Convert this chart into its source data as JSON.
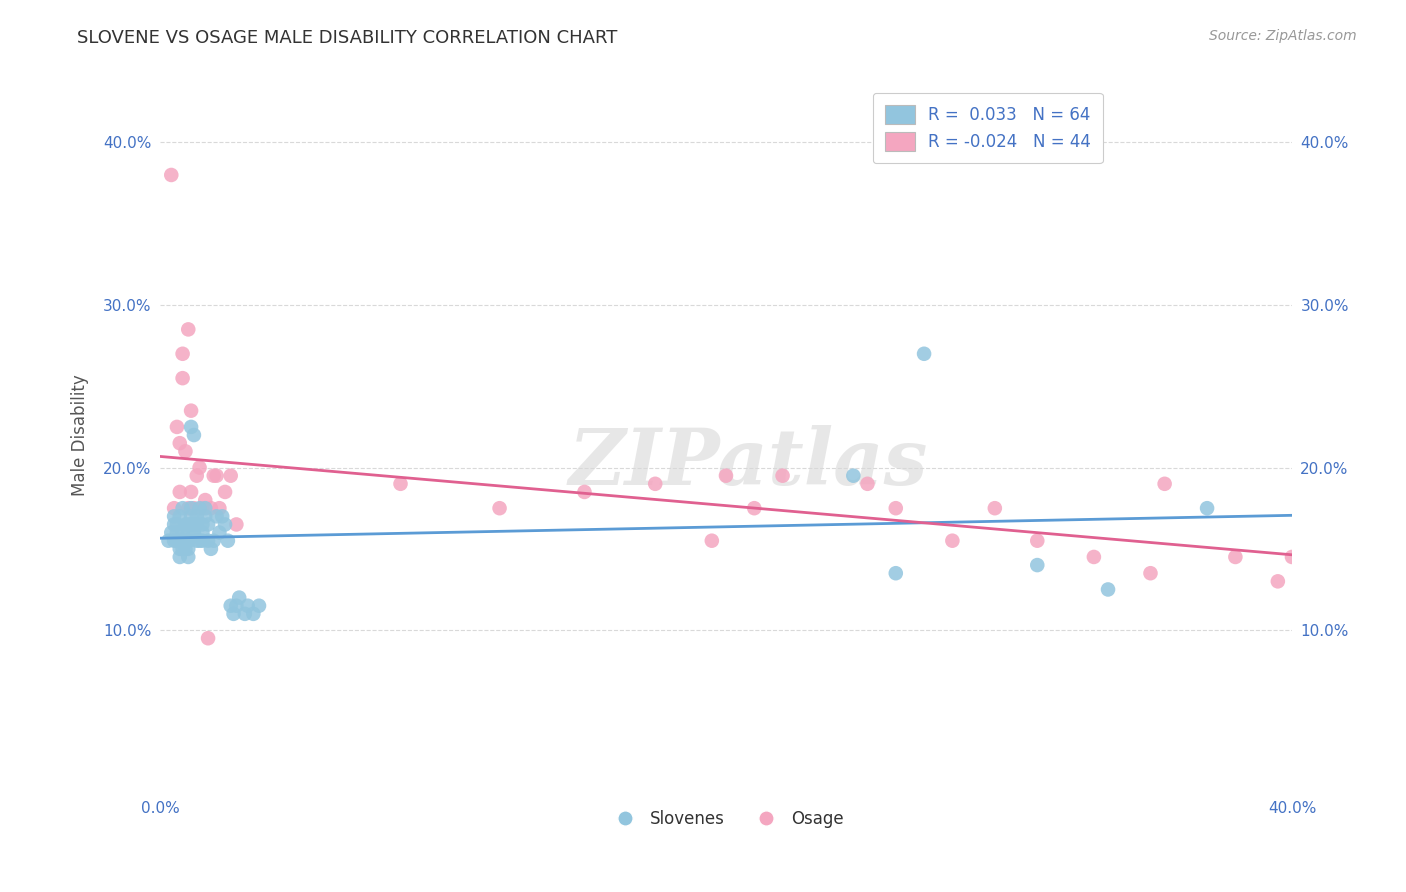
{
  "title": "SLOVENE VS OSAGE MALE DISABILITY CORRELATION CHART",
  "source": "Source: ZipAtlas.com",
  "ylabel": "Male Disability",
  "xlim": [
    0.0,
    0.4
  ],
  "ylim": [
    0.0,
    0.44
  ],
  "background_color": "#ffffff",
  "grid_color": "#d0d0d0",
  "watermark": "ZIPatlas",
  "blue_color": "#92c5de",
  "pink_color": "#f4a6c0",
  "blue_line_color": "#5b9bd5",
  "pink_line_color": "#e06090",
  "legend_r_blue": "R =  0.033",
  "legend_n_blue": "N = 64",
  "legend_r_pink": "R = -0.024",
  "legend_n_pink": "N = 44",
  "slovene_x": [
    0.003,
    0.004,
    0.005,
    0.005,
    0.005,
    0.006,
    0.006,
    0.006,
    0.007,
    0.007,
    0.007,
    0.007,
    0.008,
    0.008,
    0.008,
    0.008,
    0.009,
    0.009,
    0.009,
    0.01,
    0.01,
    0.01,
    0.01,
    0.01,
    0.011,
    0.011,
    0.011,
    0.011,
    0.012,
    0.012,
    0.012,
    0.013,
    0.013,
    0.013,
    0.014,
    0.014,
    0.015,
    0.015,
    0.015,
    0.016,
    0.016,
    0.017,
    0.017,
    0.018,
    0.019,
    0.02,
    0.021,
    0.022,
    0.023,
    0.024,
    0.025,
    0.026,
    0.027,
    0.028,
    0.03,
    0.031,
    0.033,
    0.035,
    0.245,
    0.26,
    0.27,
    0.31,
    0.335,
    0.37
  ],
  "slovene_y": [
    0.155,
    0.16,
    0.165,
    0.17,
    0.155,
    0.165,
    0.155,
    0.16,
    0.17,
    0.145,
    0.15,
    0.155,
    0.155,
    0.16,
    0.175,
    0.15,
    0.155,
    0.165,
    0.15,
    0.145,
    0.15,
    0.155,
    0.16,
    0.165,
    0.165,
    0.17,
    0.175,
    0.225,
    0.16,
    0.165,
    0.22,
    0.155,
    0.165,
    0.17,
    0.155,
    0.175,
    0.155,
    0.16,
    0.165,
    0.17,
    0.175,
    0.155,
    0.165,
    0.15,
    0.155,
    0.17,
    0.16,
    0.17,
    0.165,
    0.155,
    0.115,
    0.11,
    0.115,
    0.12,
    0.11,
    0.115,
    0.11,
    0.115,
    0.195,
    0.135,
    0.27,
    0.14,
    0.125,
    0.175
  ],
  "osage_x": [
    0.004,
    0.005,
    0.006,
    0.007,
    0.007,
    0.008,
    0.008,
    0.009,
    0.01,
    0.01,
    0.011,
    0.011,
    0.012,
    0.013,
    0.014,
    0.015,
    0.016,
    0.017,
    0.018,
    0.019,
    0.02,
    0.021,
    0.023,
    0.025,
    0.027,
    0.085,
    0.12,
    0.15,
    0.175,
    0.195,
    0.2,
    0.21,
    0.22,
    0.25,
    0.26,
    0.28,
    0.295,
    0.31,
    0.33,
    0.35,
    0.355,
    0.38,
    0.395,
    0.4
  ],
  "osage_y": [
    0.38,
    0.175,
    0.225,
    0.215,
    0.185,
    0.255,
    0.27,
    0.21,
    0.175,
    0.285,
    0.185,
    0.235,
    0.175,
    0.195,
    0.2,
    0.175,
    0.18,
    0.095,
    0.175,
    0.195,
    0.195,
    0.175,
    0.185,
    0.195,
    0.165,
    0.19,
    0.175,
    0.185,
    0.19,
    0.155,
    0.195,
    0.175,
    0.195,
    0.19,
    0.175,
    0.155,
    0.175,
    0.155,
    0.145,
    0.135,
    0.19,
    0.145,
    0.13,
    0.145
  ]
}
